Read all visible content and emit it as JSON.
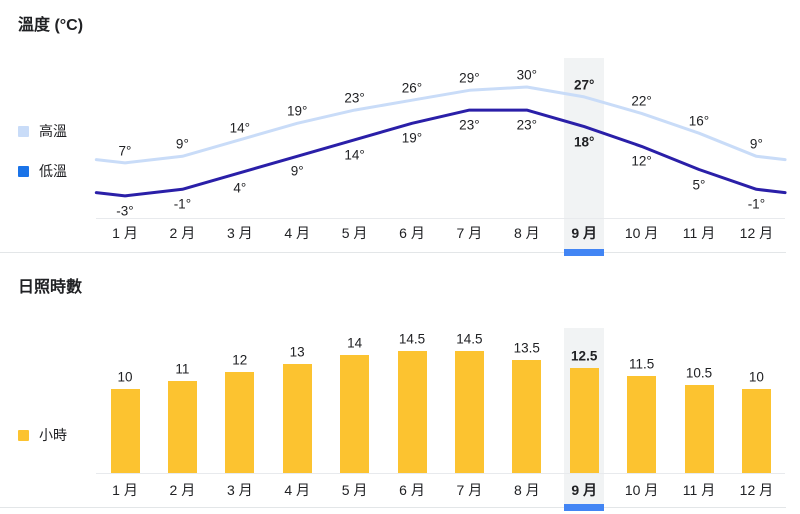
{
  "temperature_section": {
    "title": "溫度 (°C)",
    "legend": [
      {
        "label": "高溫",
        "color": "#c9dcf8"
      },
      {
        "label": "低溫",
        "color": "#1a73e8"
      }
    ]
  },
  "sunshine_section": {
    "title": "日照時數",
    "legend": [
      {
        "label": "小時",
        "color": "#fcc330"
      }
    ]
  },
  "selected_month": "9 月",
  "selected_month_index": 8,
  "chart_data": [
    {
      "type": "line",
      "title": "溫度 (°C)",
      "categories": [
        "1 月",
        "2 月",
        "3 月",
        "4 月",
        "5 月",
        "6 月",
        "7 月",
        "8 月",
        "9 月",
        "10 月",
        "11 月",
        "12 月"
      ],
      "series": [
        {
          "name": "高溫",
          "values": [
            7,
            9,
            14,
            19,
            23,
            26,
            29,
            30,
            27,
            22,
            16,
            9
          ],
          "color": "#c9dcf8",
          "label_position": "above"
        },
        {
          "name": "低溫",
          "values": [
            -3,
            -1,
            4,
            9,
            14,
            19,
            23,
            23,
            18,
            12,
            5,
            -1
          ],
          "color": "#2a1fa8",
          "label_position": "below"
        }
      ],
      "unit": "°",
      "ylim": [
        -5,
        32
      ],
      "grid": false,
      "legend_position": "left",
      "highlighted_category": "9 月"
    },
    {
      "type": "bar",
      "title": "日照時數",
      "categories": [
        "1 月",
        "2 月",
        "3 月",
        "4 月",
        "5 月",
        "6 月",
        "7 月",
        "8 月",
        "9 月",
        "10 月",
        "11 月",
        "12 月"
      ],
      "series": [
        {
          "name": "小時",
          "values": [
            10,
            11,
            12,
            13,
            14,
            14.5,
            14.5,
            13.5,
            12.5,
            11.5,
            10.5,
            10
          ],
          "color": "#fcc330"
        }
      ],
      "unit": "",
      "ylim": [
        0,
        15
      ],
      "grid": false,
      "legend_position": "left",
      "highlighted_category": "9 月"
    }
  ],
  "colors": {
    "accent_underline": "#4285f4",
    "highlight_column": "#f1f3f4",
    "axis_line": "#e8eaed",
    "separator": "#e3e6e8",
    "text": "#202124"
  }
}
